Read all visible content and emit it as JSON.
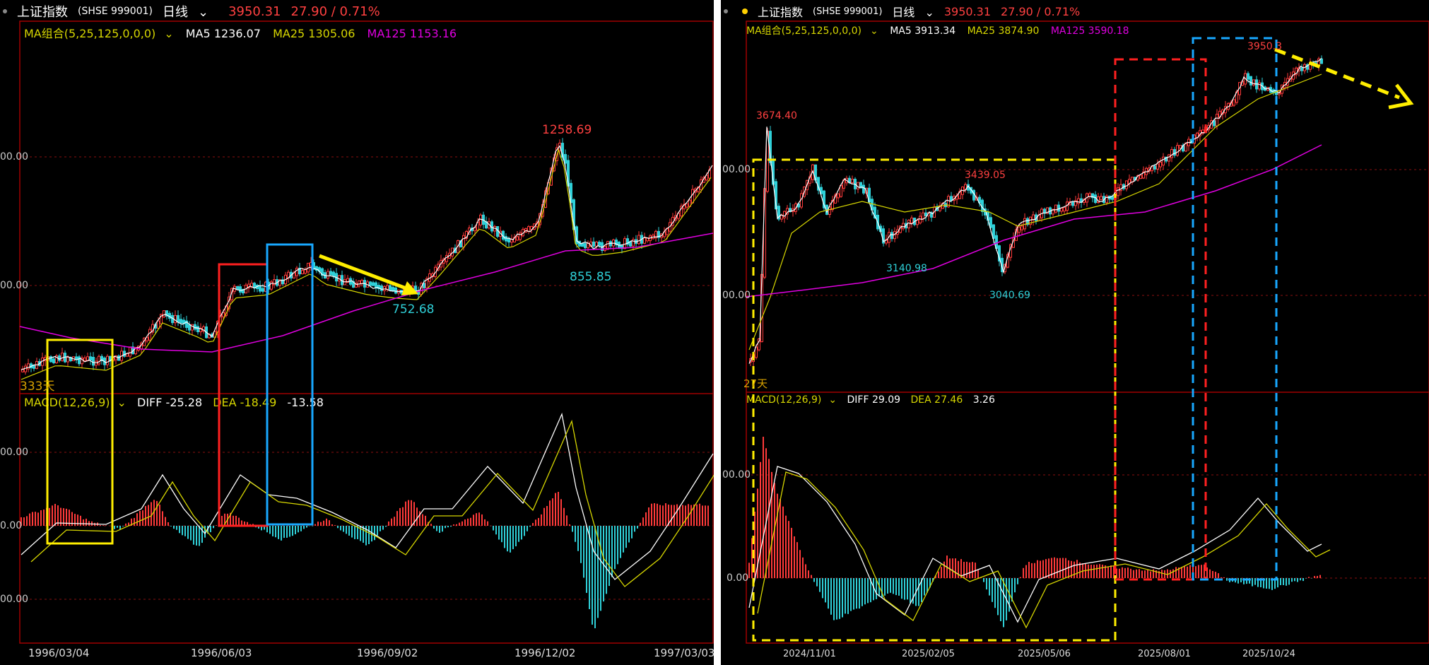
{
  "left": {
    "header": {
      "name": "上证指数",
      "code": "(SHSE 999001)",
      "period": "日线",
      "price": "3950.31",
      "change": "27.90 / 0.71%"
    },
    "ma": {
      "label": "MA组合(5,25,125,0,0,0)",
      "ma5": "MA5 1236.07",
      "ma25": "MA25 1305.06",
      "ma125": "MA125 1153.16"
    },
    "macd": {
      "label": "MACD(12,26,9)",
      "diff": "DIFF -25.28",
      "dea": "DEA -18.49",
      "macd": "-13.58"
    },
    "annotations": {
      "high": "1258.69",
      "low1": "752.68",
      "low2": "855.85",
      "days": "333天"
    },
    "ylabels": {
      "a": "00.00",
      "b": "00.00",
      "c": "00.00",
      "d": "0.00",
      "e": "00.00"
    },
    "dates": [
      "1996/03/04",
      "1996/06/03",
      "1996/09/02",
      "1996/12/02",
      "1997/03/03"
    ]
  },
  "right": {
    "header": {
      "name": "上证指数",
      "code": "(SHSE 999001)",
      "period": "日线",
      "price": "3950.31",
      "change": "27.90 / 0.71%"
    },
    "ma": {
      "label": "MA组合(5,25,125,0,0,0)",
      "ma5": "MA5 3913.34",
      "ma25": "MA25 3874.90",
      "ma125": "MA125 3590.18"
    },
    "macd": {
      "label": "MACD(12,26,9)",
      "diff": "DIFF 29.09",
      "dea": "DEA 27.46",
      "macd": "3.26"
    },
    "annotations": {
      "high1": "3674.40",
      "high2": "3439.05",
      "low1": "3140.98",
      "low2": "3040.69",
      "last": "3950.3",
      "days": "27天"
    },
    "ylabels": {
      "a": "00.00",
      "b": "00.00",
      "c": "00.00",
      "d": "0.00"
    },
    "dates": [
      "2024/11/01",
      "2025/02/05",
      "2025/05/06",
      "2025/08/01",
      "2025/10/24"
    ]
  },
  "colors": {
    "up": "#ff3a3a",
    "down": "#2fd0d8",
    "ma5": "#ffffff",
    "ma25": "#d6d600",
    "ma125": "#e000e0",
    "grid": "#7a0000",
    "yellow": "#ffee00",
    "red": "#ff2020",
    "blue": "#18a8ff"
  }
}
